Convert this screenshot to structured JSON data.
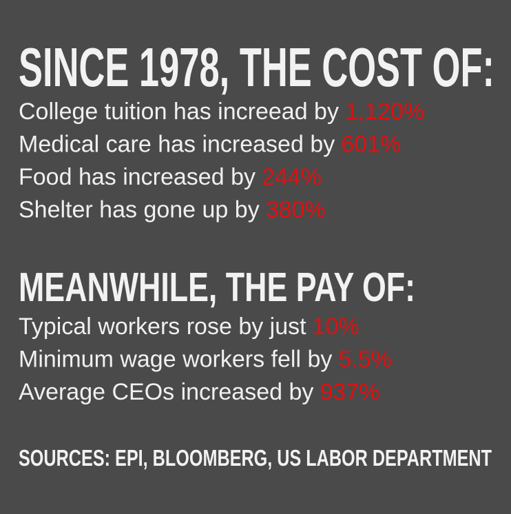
{
  "sections": [
    {
      "heading": "SINCE 1978, THE COST OF:",
      "items": [
        {
          "text": "College tuition has increead by",
          "value": "1,120%"
        },
        {
          "text": "Medical care has increased by",
          "value": "601%"
        },
        {
          "text": "Food has increased by",
          "value": "244%"
        },
        {
          "text": "Shelter has gone up by",
          "value": "380%"
        }
      ]
    },
    {
      "heading": "MEANWHILE, THE PAY OF:",
      "items": [
        {
          "text": "Typical workers rose by just",
          "value": "10%"
        },
        {
          "text": "Minimum wage workers fell by",
          "value": "5.5%"
        },
        {
          "text": "Average CEOs increased by",
          "value": "937%"
        }
      ]
    }
  ],
  "sources": "SOURCES: EPI, BLOOMBERG, US LABOR DEPARTMENT"
}
